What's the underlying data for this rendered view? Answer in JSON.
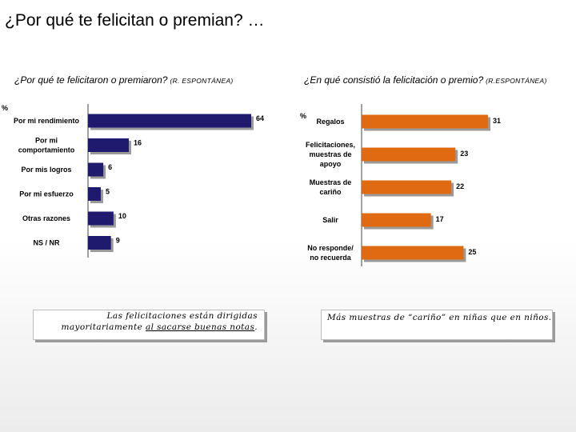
{
  "title": "¿Por qué te felicitan o premian? …",
  "chart_data": [
    {
      "type": "bar",
      "orientation": "horizontal",
      "title": "¿Por qué te felicitaron o premiaron?",
      "subtitle": "(R. ESPONTÁNEA)",
      "unit_label": "%",
      "categories": [
        "Por mi rendimiento",
        "Por mi comportamiento",
        "Por mis logros",
        "Por mi esfuerzo",
        "Otras razones",
        "NS / NR"
      ],
      "category_lines": [
        [
          "Por mi rendimiento"
        ],
        [
          "Por mi",
          "comportamiento"
        ],
        [
          "Por mis logros"
        ],
        [
          "Por mi esfuerzo"
        ],
        [
          "Otras razones"
        ],
        [
          "NS / NR"
        ]
      ],
      "values": [
        64,
        16,
        6,
        5,
        10,
        9
      ],
      "xlim": [
        0,
        64
      ],
      "color": "#1f1a6e"
    },
    {
      "type": "bar",
      "orientation": "horizontal",
      "title": "¿En qué consistió la felicitación o premio?",
      "subtitle": "(R.ESPONTÁNEA)",
      "unit_label": "%",
      "categories": [
        "Regalos",
        "Felicitaciones, muestras de apoyo",
        "Muestras de cariño",
        "Salir",
        "No responde/ no recuerda"
      ],
      "category_lines": [
        [
          "Regalos"
        ],
        [
          "Felicitaciones,",
          "muestras de",
          "apoyo"
        ],
        [
          "Muestras de",
          "cariño"
        ],
        [
          "Salir"
        ],
        [
          "No responde/",
          "no recuerda"
        ]
      ],
      "values": [
        31,
        23,
        22,
        17,
        25
      ],
      "xlim": [
        0,
        31
      ],
      "color": "#e06a12"
    }
  ],
  "notes": {
    "left_line1": "Las felicitaciones están dirigidas",
    "left_line2_pre": "mayoritariamente ",
    "left_line2_ul": "al sacarse buenas notas",
    "left_line2_post": ".",
    "right": "Más muestras de “cariño” en niñas que en niños."
  }
}
